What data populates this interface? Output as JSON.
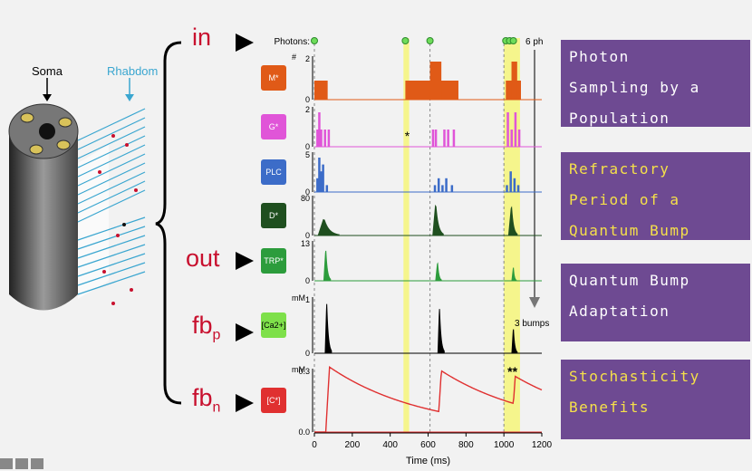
{
  "labels": {
    "in": "in",
    "out": "out",
    "fbp": "fb",
    "fbp_sub": "p",
    "fbn": "fb",
    "fbn_sub": "n"
  },
  "cell": {
    "soma_label": "Soma",
    "rhabdom_label": "Rhabdom"
  },
  "panels": [
    {
      "lines": [
        "Photon",
        "Sampling by a",
        "Population"
      ],
      "color": "#ffffff"
    },
    {
      "lines": [
        "Refractory",
        "Period of a",
        "Quantum Bump"
      ],
      "color": "#f5e04a"
    },
    {
      "lines": [
        "Quantum Bump",
        "Adaptation"
      ],
      "color": "#ffffff"
    },
    {
      "lines": [
        "Stochasticity",
        "Benefits"
      ],
      "color": "#f5e04a"
    }
  ],
  "chart_data": {
    "type": "bar",
    "title": "",
    "xlabel": "Time (ms)",
    "xlim": [
      0,
      1200
    ],
    "xticks": [
      0,
      200,
      400,
      600,
      800,
      1000,
      1200
    ],
    "photons_label": "Photons:",
    "photon_times": [
      0,
      480,
      610,
      1010,
      1030,
      1050
    ],
    "highlight_ranges": [
      [
        470,
        500
      ],
      [
        1000,
        1085
      ]
    ],
    "dashed_times": [
      0,
      610,
      1000
    ],
    "annotations": {
      "six_ph": "6 ph",
      "three_bumps": "3 bumps",
      "star": "*",
      "double_star": "**"
    },
    "rows": [
      {
        "name": "M*",
        "box_color": "#e05a17",
        "trace_color": "#e05a17",
        "yunit": "#",
        "ymax_label": "2",
        "ymin_label": "0",
        "kind": "bars",
        "segments": [
          [
            0,
            70,
            1
          ],
          [
            480,
            760,
            1
          ],
          [
            610,
            670,
            2
          ],
          [
            1010,
            1090,
            1
          ],
          [
            1040,
            1070,
            2
          ]
        ]
      },
      {
        "name": "G*",
        "box_color": "#e055d8",
        "trace_color": "#e055d8",
        "yunit": "",
        "ymax_label": "2",
        "ymin_label": "0",
        "kind": "spikes",
        "spikes": [
          [
            10,
            1
          ],
          [
            20,
            2
          ],
          [
            30,
            1
          ],
          [
            50,
            1
          ],
          [
            70,
            1
          ],
          [
            620,
            1
          ],
          [
            635,
            1
          ],
          [
            680,
            1
          ],
          [
            700,
            1
          ],
          [
            730,
            1
          ],
          [
            1015,
            2
          ],
          [
            1035,
            1
          ],
          [
            1055,
            2
          ],
          [
            1075,
            1
          ]
        ]
      },
      {
        "name": "PLC",
        "box_color": "#3c6cc8",
        "trace_color": "#3c6cc8",
        "yunit": "",
        "ymax_label": "5",
        "ymin_label": "0",
        "kind": "spikes",
        "spikes": [
          [
            10,
            2
          ],
          [
            20,
            5
          ],
          [
            30,
            3
          ],
          [
            40,
            4
          ],
          [
            60,
            1
          ],
          [
            630,
            1
          ],
          [
            650,
            2
          ],
          [
            670,
            1
          ],
          [
            690,
            2
          ],
          [
            720,
            1
          ],
          [
            1010,
            1
          ],
          [
            1030,
            3
          ],
          [
            1050,
            2
          ],
          [
            1070,
            1
          ]
        ]
      },
      {
        "name": "D*",
        "box_color": "#1f4f1f",
        "trace_color": "#1f4f1f",
        "yunit": "",
        "ymax_label": "80",
        "ymin_label": "0",
        "kind": "peaks",
        "peaks": [
          [
            50,
            40,
            30,
            80
          ],
          [
            640,
            75,
            15,
            40
          ],
          [
            1040,
            70,
            15,
            30
          ]
        ]
      },
      {
        "name": "TRP*",
        "box_color": "#2c9c3c",
        "trace_color": "#2c9c3c",
        "yunit": "",
        "ymax_label": "13",
        "ymin_label": "0",
        "kind": "peaks",
        "peaks": [
          [
            60,
            12,
            10,
            25
          ],
          [
            650,
            7,
            10,
            20
          ],
          [
            1050,
            5,
            8,
            15
          ]
        ]
      },
      {
        "name": "[Ca2+]",
        "box_color": "#7ee04a",
        "trace_color": "#000000",
        "yunit": "mM",
        "ymax_label": "1",
        "ymin_label": "0",
        "kind": "peaks",
        "peaks": [
          [
            65,
            1.0,
            8,
            25
          ],
          [
            660,
            0.9,
            8,
            25
          ],
          [
            1050,
            0.5,
            8,
            20
          ]
        ]
      },
      {
        "name": "[C*]",
        "box_color": "#e03030",
        "trace_color": "#e03030",
        "yunit": "mM",
        "ymax_label": "0.3",
        "ymin_label": "0.0",
        "kind": "decay",
        "events": [
          [
            60,
            0.35
          ],
          [
            650,
            0.33
          ],
          [
            1040,
            0.3
          ]
        ],
        "tau": 500
      }
    ]
  }
}
